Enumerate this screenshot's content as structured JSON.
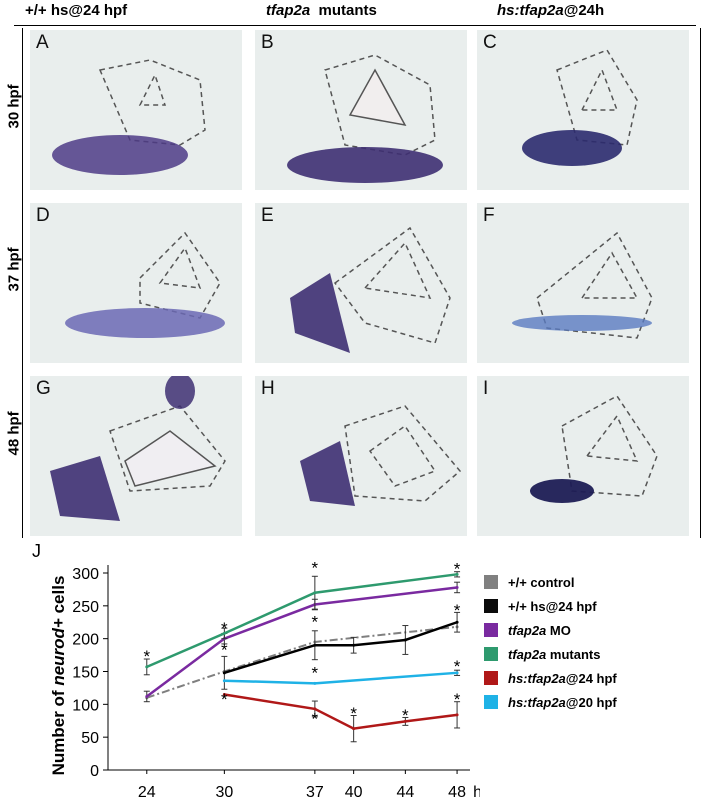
{
  "figure": {
    "columns": [
      {
        "prefix": "+/+ hs@24 hpf",
        "italic": "",
        "suffix": ""
      },
      {
        "prefix": "",
        "italic": "tfap2a",
        "suffix": "  mutants"
      },
      {
        "prefix": "",
        "italic": "hs:tfap2a",
        "suffix": "@24h"
      }
    ],
    "rows": [
      "30 hpf",
      "37 hpf",
      "48 hpf"
    ],
    "gene": "neurod",
    "panels": [
      "A",
      "B",
      "C",
      "D",
      "E",
      "F",
      "G",
      "H",
      "I"
    ]
  },
  "chart_label": "J",
  "chart_data": {
    "type": "line",
    "ylabel_prefix": "Number of ",
    "ylabel_italic": "neurod+",
    "ylabel_suffix": " cells",
    "xunit": "hpf",
    "xticks": [
      24,
      30,
      37,
      40,
      44,
      48
    ],
    "yticks": [
      0,
      50,
      100,
      150,
      200,
      250,
      300
    ],
    "ylim": [
      0,
      300
    ],
    "xlim": [
      21,
      49
    ],
    "series": [
      {
        "name": "+/+ control",
        "color": "#7f7f7f",
        "dash": true,
        "x": [
          24,
          30,
          37,
          48
        ],
        "y": [
          110,
          150,
          195,
          218
        ],
        "err": [
          0,
          0,
          0,
          0
        ]
      },
      {
        "name": "+/+ hs@24 hpf",
        "color": "#000000",
        "dash": false,
        "x": [
          30,
          37,
          40,
          44,
          48
        ],
        "y": [
          148,
          190,
          190,
          198,
          225
        ],
        "err": [
          25,
          22,
          12,
          22,
          15
        ]
      },
      {
        "name": "tfap2a MO",
        "color": "#7a2aa0",
        "dash": false,
        "x": [
          24,
          30,
          37,
          48
        ],
        "y": [
          112,
          200,
          252,
          278
        ],
        "err": [
          8,
          8,
          8,
          8
        ]
      },
      {
        "name": "tfap2a mutants",
        "color": "#2e9a6e",
        "dash": false,
        "x": [
          24,
          30,
          37,
          48
        ],
        "y": [
          157,
          208,
          270,
          298
        ],
        "err": [
          12,
          8,
          25,
          4
        ]
      },
      {
        "name": "hs:tfap2a@24 hpf",
        "color": "#b01818",
        "dash": false,
        "x": [
          30,
          37,
          40,
          44,
          48
        ],
        "y": [
          115,
          93,
          63,
          74,
          84
        ],
        "err": [
          0,
          12,
          20,
          6,
          20
        ]
      },
      {
        "name": "hs:tfap2a@20 hpf",
        "color": "#1fb2e6",
        "dash": false,
        "x": [
          30,
          37,
          48
        ],
        "y": [
          136,
          132,
          148
        ],
        "err": [
          0,
          0,
          4
        ]
      }
    ],
    "asterisks": [
      {
        "x": 24,
        "y": 175
      },
      {
        "x": 30,
        "y": 218
      },
      {
        "x": 30,
        "y": 185
      },
      {
        "x": 30,
        "y": 110
      },
      {
        "x": 37,
        "y": 310
      },
      {
        "x": 37,
        "y": 228
      },
      {
        "x": 37,
        "y": 150
      },
      {
        "x": 37,
        "y": 80
      },
      {
        "x": 40,
        "y": 88
      },
      {
        "x": 44,
        "y": 85
      },
      {
        "x": 48,
        "y": 308
      },
      {
        "x": 48,
        "y": 245
      },
      {
        "x": 48,
        "y": 160
      },
      {
        "x": 48,
        "y": 110
      }
    ]
  },
  "legend": [
    {
      "label": "+/+ control",
      "color": "#808080",
      "italic_part": ""
    },
    {
      "label": "+/+ hs@24 hpf",
      "color": "#0b0b0b",
      "italic_part": ""
    },
    {
      "label": " MO",
      "color": "#7a2aa0",
      "italic_part": "tfap2a"
    },
    {
      "label": " mutants",
      "color": "#2e9a6e",
      "italic_part": "tfap2a"
    },
    {
      "label": "@24 hpf",
      "color": "#b01818",
      "italic_part": "hs:tfap2a"
    },
    {
      "label": "@20 hpf",
      "color": "#1fb2e6",
      "italic_part": "hs:tfap2a"
    }
  ]
}
